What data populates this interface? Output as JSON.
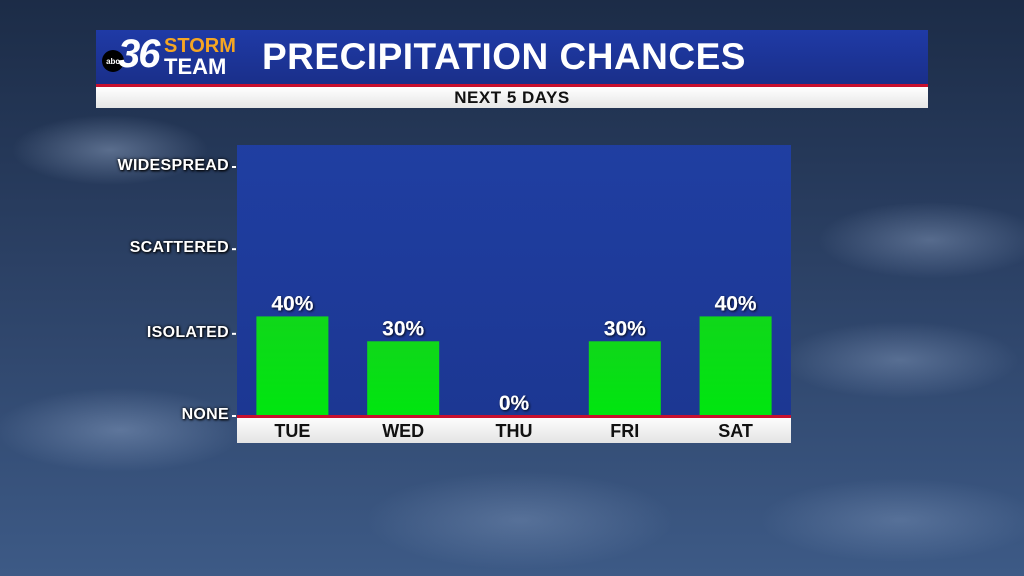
{
  "logo": {
    "network": "abc",
    "number": "36",
    "line1": "STORM",
    "line2": "TEAM"
  },
  "title": "PRECIPITATION CHANCES",
  "subtitle": "NEXT 5 DAYS",
  "colors": {
    "bar": "#00e60f",
    "plot_bg": "#1f3fa8",
    "baseline": "#c8102e",
    "header": "#1f3aa6"
  },
  "chart_data": {
    "type": "bar",
    "title": "PRECIPITATION CHANCES",
    "subtitle": "NEXT 5 DAYS",
    "categories": [
      "TUE",
      "WED",
      "THU",
      "FRI",
      "SAT"
    ],
    "values": [
      40,
      30,
      0,
      30,
      40
    ],
    "value_labels": [
      "40%",
      "30%",
      "0%",
      "30%",
      "40%"
    ],
    "unit": "%",
    "y_ticks": [
      {
        "label": "WIDESPREAD",
        "value": 100
      },
      {
        "label": "SCATTERED",
        "value": 67
      },
      {
        "label": "ISOLATED",
        "value": 33
      },
      {
        "label": "NONE",
        "value": 0
      }
    ],
    "ylim": [
      0,
      100
    ],
    "grid": false,
    "legend": "none"
  }
}
